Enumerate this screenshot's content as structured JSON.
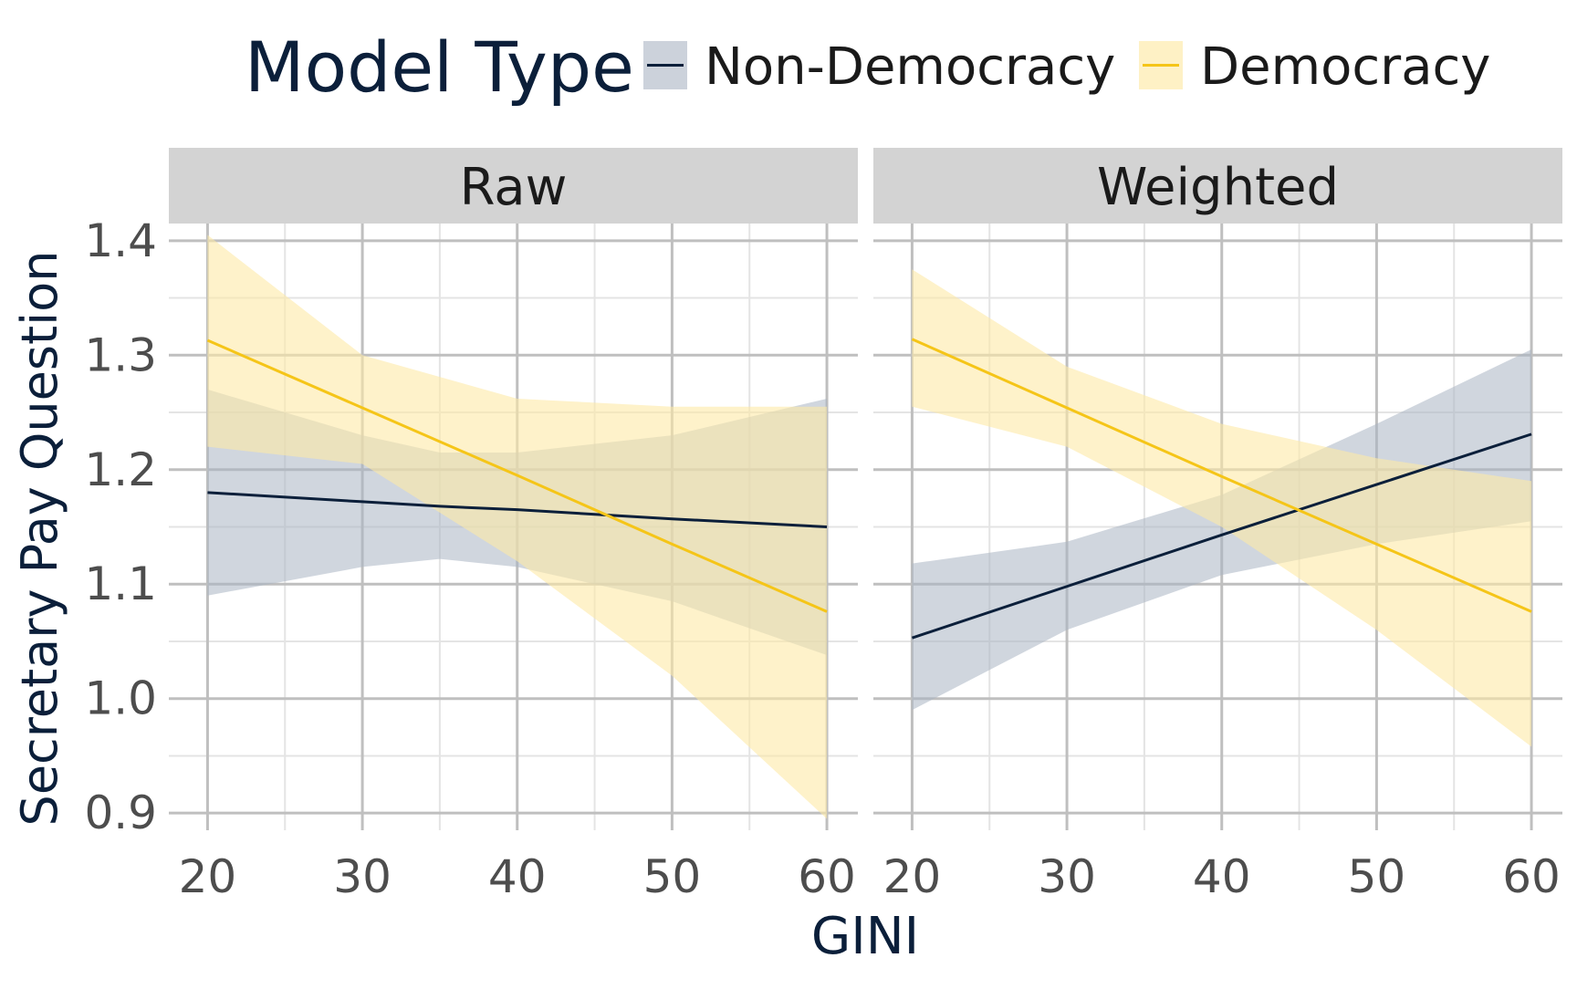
{
  "colors": {
    "non_democracy_line": "#0b1f3a",
    "non_democracy_band": "#aab4c3",
    "democracy_line": "#f5c518",
    "democracy_band": "#fde9a6",
    "strip_background": "#d3d3d3",
    "grid_major": "#bfbfbf",
    "grid_minor": "#e4e4e4"
  },
  "chart_data": {
    "type": "line",
    "legend": {
      "title": "Model Type",
      "position": "top",
      "entries": [
        {
          "label": "Non-Democracy",
          "series": "non_democracy"
        },
        {
          "label": "Democracy",
          "series": "democracy"
        }
      ]
    },
    "xlabel": "GINI",
    "ylabel": "Secretary Pay Question",
    "xlim": [
      17.5,
      62
    ],
    "ylim": [
      0.885,
      1.415
    ],
    "x_ticks": [
      20,
      30,
      40,
      50,
      60
    ],
    "x_tick_labels": [
      "20",
      "30",
      "40",
      "50",
      "60"
    ],
    "y_ticks": [
      0.9,
      1.0,
      1.1,
      1.2,
      1.3,
      1.4
    ],
    "y_tick_labels": [
      "0.9",
      "1.0",
      "1.1",
      "1.2",
      "1.3",
      "1.4"
    ],
    "grid": true,
    "panels": [
      {
        "strip_label": "Raw",
        "series": [
          {
            "key": "non_democracy",
            "x": [
              20,
              30,
              35,
              40,
              50,
              60
            ],
            "fit": [
              1.18,
              1.172,
              1.168,
              1.165,
              1.157,
              1.15
            ],
            "lower": [
              1.09,
              1.115,
              1.122,
              1.115,
              1.085,
              1.038
            ],
            "upper": [
              1.27,
              1.23,
              1.215,
              1.215,
              1.23,
              1.262
            ]
          },
          {
            "key": "democracy",
            "x": [
              20,
              30,
              40,
              50,
              60
            ],
            "fit": [
              1.313,
              1.254,
              1.195,
              1.135,
              1.076
            ],
            "lower": [
              1.22,
              1.205,
              1.12,
              1.02,
              0.895
            ],
            "upper": [
              1.405,
              1.3,
              1.262,
              1.255,
              1.255
            ]
          }
        ]
      },
      {
        "strip_label": "Weighted",
        "series": [
          {
            "key": "non_democracy",
            "x": [
              20,
              30,
              40,
              50,
              60
            ],
            "fit": [
              1.053,
              1.098,
              1.143,
              1.187,
              1.231
            ],
            "lower": [
              0.99,
              1.06,
              1.108,
              1.135,
              1.155
            ],
            "upper": [
              1.118,
              1.137,
              1.178,
              1.24,
              1.305
            ]
          },
          {
            "key": "democracy",
            "x": [
              20,
              30,
              40,
              50,
              60
            ],
            "fit": [
              1.314,
              1.254,
              1.194,
              1.135,
              1.076
            ],
            "lower": [
              1.255,
              1.22,
              1.15,
              1.06,
              0.958
            ],
            "upper": [
              1.375,
              1.29,
              1.24,
              1.21,
              1.19
            ]
          }
        ]
      }
    ]
  }
}
